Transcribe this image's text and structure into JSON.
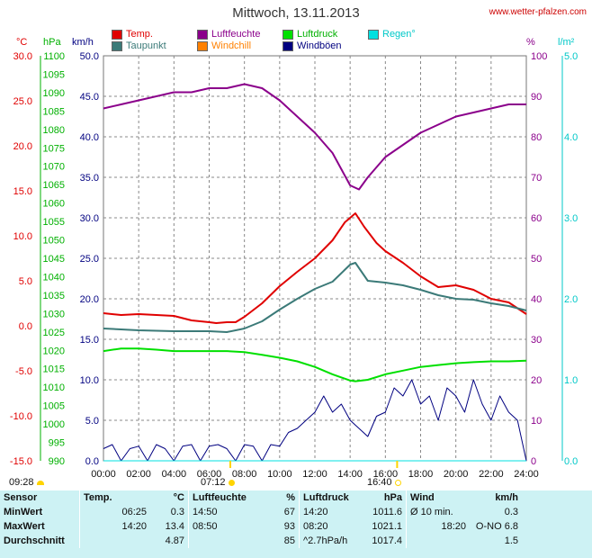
{
  "title": "Mittwoch, 13.11.2013",
  "source": "www.wetter-pfalzen.com",
  "legend": [
    {
      "label": "Temp.",
      "color": "#e00000"
    },
    {
      "label": "Taupunkt",
      "color": "#3b7a78"
    },
    {
      "label": "Luftfeuchte",
      "color": "#8b008b"
    },
    {
      "label": "Windchill",
      "color": "#ff8000"
    },
    {
      "label": "Luftdruck",
      "color": "#00e000"
    },
    {
      "label": "Windböen",
      "color": "#000080"
    },
    {
      "label": "Regen°",
      "color": "#00e0e0"
    }
  ],
  "units": {
    "celsius": "°C",
    "hpa": "hPa",
    "kmh": "km/h",
    "percent": "%",
    "rain": "l/m²"
  },
  "sun": {
    "sunrise": "07:12",
    "sunset": "16:40",
    "moonrise": "09:28"
  },
  "chart_data": {
    "type": "line",
    "title": "Mittwoch, 13.11.2013",
    "x_ticks": [
      "00:00",
      "02:00",
      "04:00",
      "06:00",
      "08:00",
      "10:00",
      "12:00",
      "14:00",
      "16:00",
      "18:00",
      "20:00",
      "22:00",
      "24:00"
    ],
    "xlim": [
      0,
      24
    ],
    "axes": {
      "temperature_c": {
        "range": [
          -15,
          30
        ],
        "ticks": [
          "30.0",
          "25.0",
          "20.0",
          "15.0",
          "10.0",
          "5.0",
          "0.0",
          "-5.0",
          "-10.0",
          "-15.0"
        ]
      },
      "pressure_hpa": {
        "range": [
          990,
          1100
        ],
        "ticks": [
          "1100",
          "1095",
          "1090",
          "1085",
          "1080",
          "1075",
          "1070",
          "1065",
          "1060",
          "1055",
          "1050",
          "1045",
          "1040",
          "1035",
          "1030",
          "1025",
          "1020",
          "1015",
          "1010",
          "1005",
          "1000",
          "995",
          "990"
        ]
      },
      "wind_kmh": {
        "range": [
          0,
          50
        ],
        "ticks": [
          "50.0",
          "45.0",
          "40.0",
          "35.0",
          "30.0",
          "25.0",
          "20.0",
          "15.0",
          "10.0",
          "5.0",
          "0.0"
        ]
      },
      "humidity_pct": {
        "range": [
          0,
          100
        ],
        "ticks": [
          "100",
          "90",
          "80",
          "70",
          "60",
          "50",
          "40",
          "30",
          "20",
          "10",
          "0"
        ]
      },
      "rain_lm2": {
        "range": [
          0,
          5
        ],
        "ticks": [
          "5.0",
          "4.0",
          "3.0",
          "2.0",
          "1.0",
          "0.0"
        ]
      }
    },
    "series": [
      {
        "name": "Temp.",
        "axis": "temperature_c",
        "color": "#e00000",
        "x": [
          0,
          1,
          2,
          3,
          4,
          5,
          6,
          6.4,
          7,
          7.5,
          8,
          9,
          10,
          11,
          12,
          13,
          13.7,
          14.3,
          14.8,
          15.5,
          16,
          17,
          18,
          19,
          20,
          21,
          22,
          23,
          24
        ],
        "y": [
          1.4,
          1.2,
          1.3,
          1.2,
          1.1,
          0.6,
          0.4,
          0.3,
          0.4,
          0.4,
          1.0,
          2.5,
          4.4,
          6.0,
          7.5,
          9.5,
          11.5,
          12.5,
          11.0,
          9.2,
          8.3,
          7.0,
          5.5,
          4.3,
          4.5,
          4.0,
          3.0,
          2.6,
          1.3
        ]
      },
      {
        "name": "Taupunkt",
        "axis": "temperature_c",
        "color": "#3b7a78",
        "x": [
          0,
          2,
          4,
          6,
          7,
          8,
          9,
          10,
          11,
          12,
          13,
          14,
          14.3,
          15,
          16,
          17,
          18,
          19,
          20,
          21,
          22,
          23,
          24
        ],
        "y": [
          -0.3,
          -0.5,
          -0.6,
          -0.6,
          -0.7,
          -0.3,
          0.5,
          1.8,
          3.0,
          4.1,
          4.9,
          6.8,
          7.0,
          5.0,
          4.8,
          4.5,
          4.0,
          3.4,
          3.0,
          2.9,
          2.5,
          2.2,
          1.7
        ]
      },
      {
        "name": "Luftfeuchte",
        "axis": "humidity_pct",
        "color": "#8b008b",
        "x": [
          0,
          1,
          2,
          3,
          4,
          5,
          6,
          7,
          8,
          9,
          10,
          11,
          12,
          13,
          13.5,
          14,
          14.5,
          15,
          16,
          17,
          18,
          19,
          20,
          21,
          22,
          23,
          24
        ],
        "y": [
          87,
          88,
          89,
          90,
          91,
          91,
          92,
          92,
          93,
          92,
          89,
          85,
          81,
          76,
          72,
          68,
          67,
          70,
          75,
          78,
          81,
          83,
          85,
          86,
          87,
          88,
          88
        ]
      },
      {
        "name": "Luftdruck",
        "axis": "pressure_hpa",
        "color": "#00e000",
        "x": [
          0,
          1,
          2,
          3,
          4,
          5,
          6,
          7,
          8,
          9,
          10,
          11,
          12,
          13,
          14,
          14.3,
          15,
          16,
          17,
          18,
          19,
          20,
          21,
          22,
          23,
          24
        ],
        "y": [
          1019.8,
          1020.5,
          1020.5,
          1020.2,
          1019.8,
          1019.8,
          1019.8,
          1019.8,
          1019.5,
          1018.8,
          1018.0,
          1017.0,
          1015.5,
          1013.5,
          1011.8,
          1011.6,
          1012.0,
          1013.5,
          1014.5,
          1015.5,
          1016.0,
          1016.5,
          1016.8,
          1017.0,
          1017.0,
          1017.2
        ]
      },
      {
        "name": "Windböen",
        "axis": "wind_kmh",
        "color": "#000080",
        "x": [
          0,
          0.5,
          1,
          1.5,
          2,
          2.5,
          3,
          3.5,
          4,
          4.5,
          5,
          5.5,
          6,
          6.5,
          7,
          7.5,
          8,
          8.5,
          9,
          9.5,
          10,
          10.5,
          11,
          11.5,
          12,
          12.5,
          13,
          13.5,
          14,
          14.5,
          15,
          15.5,
          16,
          16.5,
          17,
          17.5,
          18,
          18.5,
          19,
          19.5,
          20,
          20.5,
          21,
          21.5,
          22,
          22.5,
          23,
          23.5,
          24
        ],
        "y": [
          1.5,
          2,
          0,
          1.5,
          1.8,
          0,
          2,
          1.5,
          0,
          1.8,
          2,
          0,
          1.8,
          2,
          1.5,
          0,
          2,
          1.8,
          0,
          2,
          1.8,
          3.5,
          4,
          5,
          6,
          8,
          6,
          7,
          5,
          4,
          3,
          5.5,
          6,
          9,
          8,
          10,
          7,
          8,
          5,
          9,
          8,
          6,
          10,
          7,
          5,
          8,
          6,
          5,
          0
        ]
      },
      {
        "name": "Regen°",
        "axis": "rain_lm2",
        "color": "#00e0e0",
        "x": [
          0,
          24
        ],
        "y": [
          0,
          0
        ]
      }
    ]
  },
  "stats": {
    "headers": [
      "Sensor",
      "Temp.",
      "°C",
      "Luftfeuchte",
      "%",
      "Luftdruck",
      "hPa",
      "Wind",
      "km/h"
    ],
    "rows": [
      [
        "MinWert",
        "06:25",
        "0.3",
        "14:50",
        "67",
        "14:20",
        "1011.6",
        "Ø 10 min.",
        "0.3"
      ],
      [
        "MaxWert",
        "14:20",
        "13.4",
        "08:50",
        "93",
        "08:20",
        "1021.1",
        "18:20",
        "O-NO 6.8"
      ],
      [
        "Durchschnitt",
        "",
        "4.87",
        "",
        "85",
        "^2.7hPa/h",
        "1017.4",
        "",
        "1.5"
      ]
    ]
  }
}
